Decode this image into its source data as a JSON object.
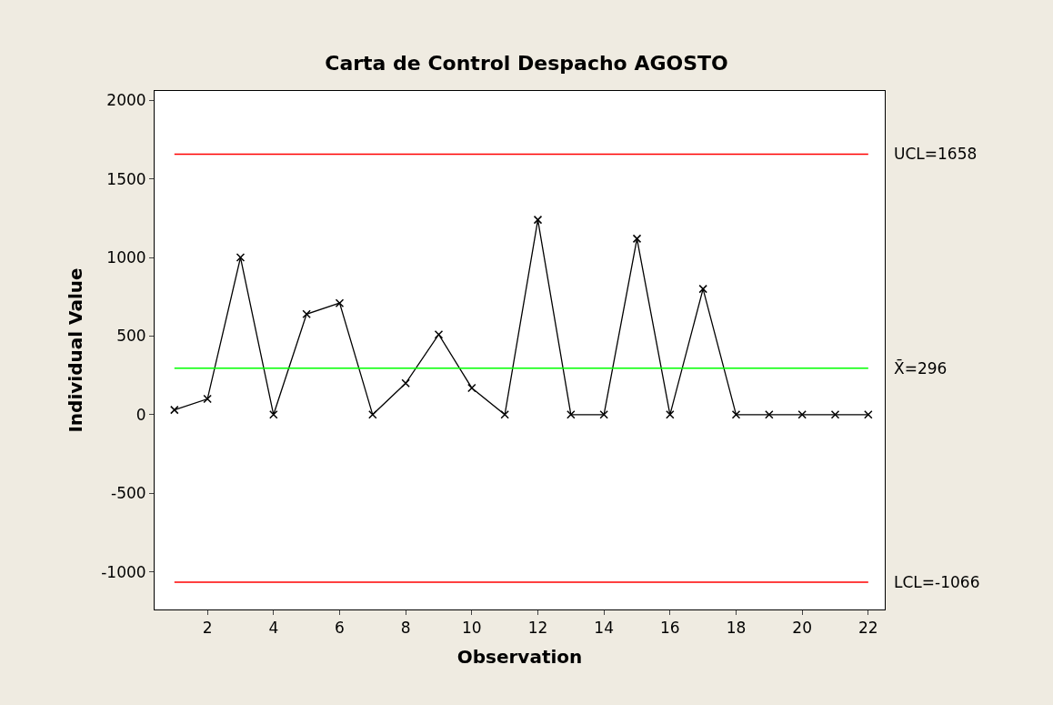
{
  "chart_data": {
    "type": "line",
    "title": "Carta de Control Despacho AGOSTO",
    "xlabel": "Observation",
    "ylabel": "Individual Value",
    "x": [
      1,
      2,
      3,
      4,
      5,
      6,
      7,
      8,
      9,
      10,
      11,
      12,
      13,
      14,
      15,
      16,
      17,
      18,
      19,
      20,
      21,
      22
    ],
    "series": [
      {
        "color": "#000000",
        "values": [
          30,
          100,
          1000,
          0,
          640,
          710,
          0,
          200,
          510,
          170,
          0,
          1240,
          0,
          0,
          1120,
          0,
          800,
          0,
          0,
          0,
          0,
          0
        ]
      }
    ],
    "xlim": [
      0.4,
      22.5
    ],
    "xticks": [
      2,
      4,
      6,
      8,
      10,
      12,
      14,
      16,
      18,
      20,
      22
    ],
    "ylim": [
      -1240,
      2060
    ],
    "yticks": [
      -1000,
      -500,
      0,
      500,
      1000,
      1500,
      2000
    ],
    "ref_lines": [
      {
        "axis": "y",
        "value": 1658,
        "label": "UCL=1658",
        "color": "#ff0000"
      },
      {
        "axis": "y",
        "value": 296,
        "label": "X̄=296",
        "color": "#00ff00"
      },
      {
        "axis": "y",
        "value": -1066,
        "label": "LCL=-1066",
        "color": "#ff0000"
      }
    ],
    "marker": "cross",
    "legend": false
  }
}
